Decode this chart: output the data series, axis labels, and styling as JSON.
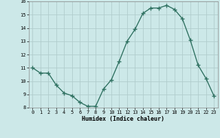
{
  "x": [
    0,
    1,
    2,
    3,
    4,
    5,
    6,
    7,
    8,
    9,
    10,
    11,
    12,
    13,
    14,
    15,
    16,
    17,
    18,
    19,
    20,
    21,
    22,
    23
  ],
  "y": [
    11.0,
    10.6,
    10.6,
    9.7,
    9.1,
    8.9,
    8.4,
    8.1,
    8.1,
    9.4,
    10.1,
    11.5,
    13.0,
    13.9,
    15.1,
    15.5,
    15.5,
    15.7,
    15.4,
    14.7,
    13.1,
    11.2,
    10.2,
    8.9
  ],
  "xlabel": "Humidex (Indice chaleur)",
  "ylim": [
    8,
    16
  ],
  "xlim_min": -0.5,
  "xlim_max": 23.5,
  "yticks": [
    8,
    9,
    10,
    11,
    12,
    13,
    14,
    15,
    16
  ],
  "xticks": [
    0,
    1,
    2,
    3,
    4,
    5,
    6,
    7,
    8,
    9,
    10,
    11,
    12,
    13,
    14,
    15,
    16,
    17,
    18,
    19,
    20,
    21,
    22,
    23
  ],
  "line_color": "#2e7060",
  "marker": "+",
  "marker_size": 4,
  "bg_color": "#cce8e8",
  "grid_color": "#b0cccc",
  "xlabel_fontsize": 6,
  "tick_fontsize": 5,
  "linewidth": 1.0
}
